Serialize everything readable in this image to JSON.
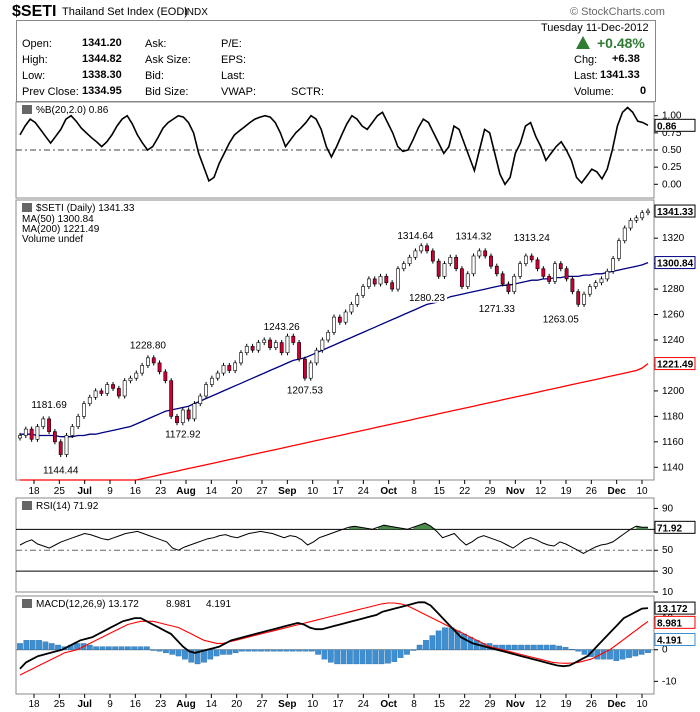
{
  "header": {
    "symbol": "$SETI",
    "name": "Thailand Set Index (EOD)",
    "exchange": "INDX",
    "watermark": "© StockCharts.com",
    "date": "Tuesday  11-Dec-2012"
  },
  "quote": {
    "open_label": "Open:",
    "open": "1341.20",
    "high_label": "High:",
    "high": "1344.82",
    "low_label": "Low:",
    "low": "1338.30",
    "prevclose_label": "Prev Close:",
    "prevclose": "1334.95",
    "ask_label": "Ask:",
    "asksize_label": "Ask Size:",
    "bid_label": "Bid:",
    "bidsize_label": "Bid Size:",
    "pe_label": "P/E:",
    "eps_label": "EPS:",
    "last_label": "Last:",
    "vwap_label": "VWAP:",
    "sctr_label": "SCTR:",
    "change_pct": "+0.48%",
    "chg_label": "Chg:",
    "chg": "+6.38",
    "last2_label": "Last:",
    "last": "1341.33",
    "volume_label": "Volume:",
    "volume": "0"
  },
  "colors": {
    "up": "#ffffff",
    "down": "#cc0033",
    "ma50": "#000080",
    "ma200": "#ff0000",
    "macd_hist": "#3d8fd1",
    "rsi_fill": "#4a8a4a",
    "arrow": "#2e7d32"
  },
  "chart_data": [
    {
      "type": "line",
      "title": "%B(20,2.0) 0.86",
      "ylim": [
        -0.2,
        1.2
      ],
      "yticks": [
        "1.00",
        "0.75",
        "0.50",
        "0.25",
        "0.00"
      ],
      "last_value_label": "0.86",
      "series": [
        {
          "name": "%B(20,2.0)",
          "values": [
            0.72,
            0.85,
            0.95,
            0.9,
            0.8,
            0.7,
            0.6,
            0.7,
            0.8,
            0.95,
            1.0,
            0.92,
            0.82,
            0.75,
            0.68,
            0.62,
            0.55,
            0.62,
            0.72,
            0.85,
            0.95,
            1.0,
            0.88,
            0.72,
            0.6,
            0.5,
            0.55,
            0.68,
            0.82,
            0.9,
            0.95,
            1.0,
            0.98,
            0.9,
            0.75,
            0.45,
            0.25,
            0.05,
            0.1,
            0.3,
            0.45,
            0.6,
            0.72,
            0.78,
            0.84,
            0.9,
            0.95,
            0.98,
            1.0,
            0.98,
            0.9,
            0.75,
            0.55,
            0.65,
            0.75,
            0.82,
            0.9,
            1.0,
            0.95,
            0.8,
            0.55,
            0.4,
            0.55,
            0.72,
            0.88,
            1.0,
            0.95,
            0.85,
            0.8,
            0.9,
            1.0,
            1.05,
            0.9,
            0.75,
            0.55,
            0.48,
            0.5,
            0.65,
            0.82,
            0.95,
            0.9,
            0.75,
            0.6,
            0.45,
            0.55,
            0.85,
            0.8,
            0.6,
            0.4,
            0.2,
            0.5,
            0.8,
            0.75,
            0.45,
            0.15,
            0.0,
            0.1,
            0.45,
            0.6,
            0.85,
            0.9,
            0.7,
            0.55,
            0.35,
            0.45,
            0.55,
            0.62,
            0.5,
            0.35,
            0.1,
            0.02,
            0.12,
            0.22,
            0.18,
            0.08,
            0.22,
            0.5,
            0.85,
            1.05,
            1.12,
            1.05,
            0.92,
            0.9,
            0.86
          ]
        }
      ]
    },
    {
      "type": "candlestick",
      "title": "$SETI (Daily) 1341.33",
      "legend": [
        "MA(50) 1300.84",
        "MA(200) 1221.49",
        "Volume undef"
      ],
      "ylim": [
        1130,
        1350
      ],
      "yticks": [
        1140,
        1160,
        1180,
        1200,
        1220,
        1240,
        1260,
        1280,
        1300,
        1320
      ],
      "x_labels": [
        "18",
        "25",
        "Jul",
        "9",
        "16",
        "23",
        "Aug",
        "14",
        "20",
        "27",
        "Sep",
        "10",
        "17",
        "24",
        "Oct",
        "8",
        "15",
        "22",
        "29",
        "Nov",
        "12",
        "19",
        "26",
        "Dec",
        "10"
      ],
      "annotations": [
        "1181.69",
        "1144.44",
        "1228.80",
        "1172.92",
        "1243.26",
        "1207.53",
        "1314.64",
        "1280.23",
        "1314.32",
        "1271.33",
        "1313.24",
        "1263.05"
      ],
      "price_labels": [
        "1341.33",
        "1300.84",
        "1221.49"
      ],
      "close": [
        1165,
        1170,
        1162,
        1172,
        1178,
        1168,
        1160,
        1150,
        1165,
        1172,
        1180,
        1190,
        1195,
        1200,
        1198,
        1205,
        1202,
        1196,
        1208,
        1210,
        1214,
        1220,
        1226,
        1222,
        1215,
        1208,
        1180,
        1175,
        1185,
        1178,
        1190,
        1196,
        1205,
        1210,
        1214,
        1220,
        1216,
        1222,
        1230,
        1235,
        1232,
        1238,
        1240,
        1234,
        1238,
        1230,
        1243,
        1238,
        1225,
        1210,
        1222,
        1232,
        1240,
        1246,
        1258,
        1254,
        1262,
        1268,
        1275,
        1282,
        1288,
        1284,
        1290,
        1285,
        1280,
        1296,
        1300,
        1305,
        1310,
        1314,
        1310,
        1302,
        1290,
        1300,
        1305,
        1296,
        1282,
        1292,
        1306,
        1310,
        1306,
        1298,
        1292,
        1284,
        1278,
        1290,
        1300,
        1306,
        1303,
        1296,
        1290,
        1286,
        1300,
        1296,
        1288,
        1278,
        1268,
        1276,
        1282,
        1285,
        1288,
        1294,
        1304,
        1318,
        1328,
        1334,
        1336,
        1340,
        1341.33
      ],
      "ma50": [
        1166,
        1166,
        1166,
        1165,
        1165,
        1165,
        1165,
        1164,
        1164,
        1164,
        1165,
        1165,
        1166,
        1166,
        1167,
        1168,
        1169,
        1170,
        1171,
        1172,
        1174,
        1176,
        1178,
        1180,
        1182,
        1184,
        1185,
        1186,
        1187,
        1188,
        1190,
        1192,
        1194,
        1196,
        1198,
        1200,
        1202,
        1204,
        1206,
        1208,
        1210,
        1212,
        1214,
        1216,
        1218,
        1220,
        1222,
        1224,
        1225,
        1226,
        1228,
        1230,
        1232,
        1234,
        1236,
        1238,
        1240,
        1242,
        1244,
        1246,
        1248,
        1250,
        1252,
        1254,
        1256,
        1258,
        1260,
        1262,
        1264,
        1266,
        1268,
        1269,
        1270,
        1272,
        1274,
        1275,
        1276,
        1277,
        1278,
        1279,
        1280,
        1281,
        1282,
        1283,
        1283,
        1284,
        1285,
        1286,
        1287,
        1287,
        1288,
        1288,
        1289,
        1289,
        1290,
        1290,
        1290,
        1291,
        1291,
        1292,
        1292,
        1293,
        1294,
        1295,
        1296,
        1297,
        1298,
        1299,
        1300.84
      ],
      "ma200": [
        1110,
        1111,
        1112,
        1113,
        1114,
        1115,
        1116,
        1117,
        1118,
        1119,
        1120,
        1121,
        1122,
        1123,
        1124,
        1125,
        1126,
        1127,
        1128,
        1129,
        1130,
        1131,
        1132,
        1133,
        1134,
        1135,
        1136,
        1137,
        1138,
        1139,
        1140,
        1141,
        1142,
        1143,
        1144,
        1145,
        1146,
        1147,
        1148,
        1149,
        1150,
        1151,
        1152,
        1153,
        1154,
        1155,
        1156,
        1157,
        1158,
        1159,
        1160,
        1161,
        1162,
        1163,
        1164,
        1165,
        1166,
        1167,
        1168,
        1169,
        1170,
        1171,
        1172,
        1173,
        1174,
        1175,
        1176,
        1177,
        1178,
        1179,
        1180,
        1181,
        1182,
        1183,
        1184,
        1185,
        1186,
        1187,
        1188,
        1189,
        1190,
        1191,
        1192,
        1193,
        1194,
        1195,
        1196,
        1197,
        1198,
        1199,
        1200,
        1201,
        1202,
        1203,
        1204,
        1205,
        1206,
        1207,
        1208,
        1209,
        1210,
        1211,
        1212,
        1213,
        1214,
        1215,
        1216,
        1218,
        1221.49
      ]
    },
    {
      "type": "line",
      "title": "RSI(14) 71.92",
      "ylim": [
        10,
        100
      ],
      "yticks": [
        "90",
        "70",
        "50",
        "30",
        "10"
      ],
      "last_value_label": "71.92",
      "series": [
        {
          "name": "RSI(14)",
          "values": [
            55,
            58,
            60,
            56,
            54,
            52,
            55,
            58,
            60,
            62,
            64,
            66,
            65,
            63,
            61,
            60,
            62,
            64,
            66,
            67,
            68,
            66,
            64,
            62,
            60,
            58,
            52,
            50,
            53,
            55,
            57,
            59,
            61,
            62,
            64,
            65,
            63,
            62,
            64,
            66,
            67,
            68,
            67,
            66,
            64,
            62,
            64,
            63,
            60,
            55,
            58,
            62,
            64,
            66,
            68,
            70,
            72,
            73,
            72,
            71,
            70,
            72,
            74,
            73,
            72,
            71,
            70,
            72,
            74,
            76,
            73,
            68,
            62,
            64,
            66,
            60,
            55,
            58,
            62,
            64,
            62,
            60,
            58,
            55,
            52,
            56,
            60,
            62,
            60,
            57,
            55,
            54,
            58,
            56,
            53,
            50,
            47,
            50,
            53,
            55,
            56,
            58,
            62,
            66,
            70,
            73,
            72,
            71.92
          ]
        }
      ]
    },
    {
      "type": "line",
      "title": "MACD(12,26,9) 13.172, 8.981, 4.191",
      "ylim": [
        -14,
        17
      ],
      "yticks": [
        "10",
        "0",
        "-10"
      ],
      "legend": [
        "MACD(12,26,9) 13.172",
        "8.981",
        "4.191"
      ],
      "price_labels": [
        "13.172",
        "8.981",
        "4.191"
      ],
      "series": [
        {
          "name": "MACD",
          "values": [
            -6,
            -4,
            -3,
            -2,
            -1.5,
            -1,
            -0.5,
            0,
            1,
            2,
            3,
            3.5,
            4,
            5,
            6,
            7,
            8,
            9,
            9.5,
            10,
            10,
            9,
            8,
            7,
            6,
            5,
            3,
            1,
            -0.5,
            -1,
            -0.5,
            0,
            0.5,
            1,
            2,
            3,
            3.5,
            4,
            4.5,
            5,
            5.5,
            6,
            6.5,
            7,
            7.5,
            8,
            8.5,
            8,
            7,
            6.5,
            6.5,
            7,
            7.5,
            8,
            8.5,
            9,
            9.5,
            10,
            10.5,
            11,
            12,
            12.5,
            13,
            13.5,
            14,
            14.5,
            15,
            15,
            14,
            12,
            10,
            8,
            6,
            4,
            3,
            2,
            1.5,
            1,
            0.5,
            0,
            -0.5,
            -1,
            -1.5,
            -2,
            -2.5,
            -3,
            -3.5,
            -4,
            -4.5,
            -5,
            -5.2,
            -5,
            -4,
            -3,
            -2,
            0,
            2,
            4,
            6,
            8,
            10,
            11,
            12,
            13,
            13.172
          ]
        },
        {
          "name": "Signal",
          "values": [
            -8,
            -7,
            -6,
            -5,
            -4,
            -3,
            -2,
            -1,
            -0.5,
            0,
            1,
            2,
            3,
            4,
            5,
            6,
            7,
            8,
            8.5,
            9,
            9,
            9,
            8.5,
            8,
            7.5,
            7,
            6,
            5,
            4,
            3,
            2.5,
            2,
            2,
            2.5,
            3,
            3.5,
            4,
            4.5,
            5,
            5.5,
            6,
            6.5,
            7,
            7.5,
            8,
            8.5,
            9,
            9.5,
            10,
            10.5,
            11,
            11.5,
            12,
            12.5,
            13,
            13.5,
            14,
            14.5,
            14.8,
            14.8,
            14.5,
            14,
            13,
            12,
            11,
            10,
            9,
            8,
            7,
            6,
            5,
            4,
            3,
            2,
            1,
            0.5,
            0,
            -0.5,
            -1,
            -1.5,
            -2,
            -2.5,
            -3,
            -3.5,
            -4,
            -4.2,
            -4.3,
            -4.2,
            -4,
            -3.5,
            -3,
            -2,
            -1,
            0,
            1.5,
            3,
            4.5,
            6,
            7.5,
            8.981
          ]
        }
      ]
    }
  ]
}
